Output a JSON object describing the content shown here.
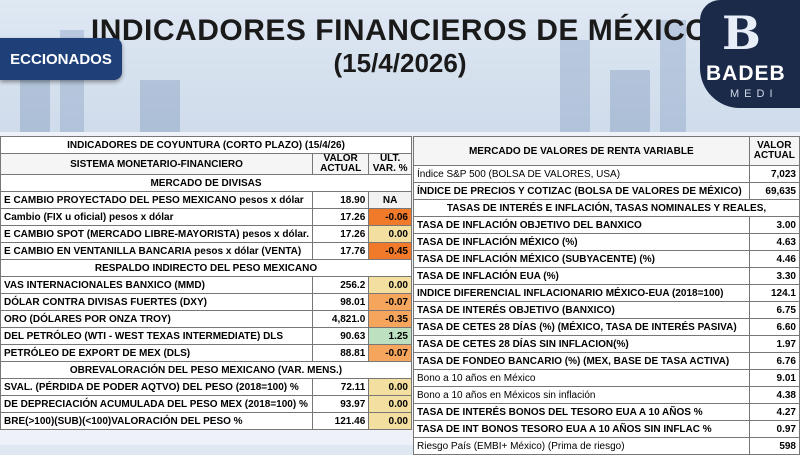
{
  "header": {
    "title": "INDICADORES FINANCIEROS DE MÉXICO",
    "date": "(15/4/2026)",
    "badge": "ECCIONADOS"
  },
  "logo": {
    "mark": "B",
    "name": "BADEB",
    "sub": "MEDI"
  },
  "left": {
    "title": "INDICADORES DE COYUNTURA (CORTO PLAZO) (15/4/26)",
    "col1": "SISTEMA MONETARIO-FINANCIERO",
    "col2": "VALOR ACTUAL",
    "col3": "ÚLT. VAR. %",
    "s1": "MERCADO DE DIVISAS",
    "rows1": [
      {
        "label": "E CAMBIO PROYECTADO DEL PESO MEXICANO pesos x dólar",
        "value": "18.90",
        "var": "NA"
      },
      {
        "label": "Cambio (FIX u oficial) pesos x dólar",
        "value": "17.26",
        "var": "-0.06"
      },
      {
        "label": "E CAMBIO SPOT (MERCADO LIBRE-MAYORISTA) pesos x dólar.",
        "value": "17.26",
        "var": "0.00"
      },
      {
        "label": "E CAMBIO EN VENTANILLA BANCARIA pesos x dólar (VENTA)",
        "value": "17.76",
        "var": "-0.45"
      }
    ],
    "s2": "RESPALDO INDIRECTO DEL PESO MEXICANO",
    "rows2": [
      {
        "label": "VAS INTERNACIONALES BANXICO (MMD)",
        "value": "256.2",
        "var": "0.00"
      },
      {
        "label": "DÓLAR CONTRA DIVISAS FUERTES (DXY)",
        "value": "98.01",
        "var": "-0.07"
      },
      {
        "label": "ORO (DÓLARES POR ONZA TROY)",
        "value": "4,821.0",
        "var": "-0.35"
      },
      {
        "label": "DEL PETRÓLEO (WTI - WEST TEXAS INTERMEDIATE) DLS",
        "value": "90.63",
        "var": "1.25"
      },
      {
        "label": "PETRÓLEO DE EXPORT DE MEX (DLS)",
        "value": "88.81",
        "var": "-0.07"
      }
    ],
    "s3": "OBREVALORACIÓN DEL PESO MEXICANO (VAR. MENS.)",
    "rows3": [
      {
        "label": "SVAL. (PÉRDIDA DE PODER AQTVO) DEL PESO (2018=100) %",
        "value": "72.11",
        "var": "0.00"
      },
      {
        "label": "DE DEPRECIACIÓN ACUMULADA DEL PESO MEX (2018=100) %",
        "value": "93.97",
        "var": "0.00"
      },
      {
        "label": "BRE(>100)(SUB)(<100)VALORACIÓN DEL PESO  %",
        "value": "121.46",
        "var": "0.00"
      }
    ]
  },
  "right": {
    "col1": "MERCADO DE VALORES DE RENTA VARIABLE",
    "col2": "VALOR ACTUAL",
    "rows1": [
      {
        "label": "Índice S&P 500 (BOLSA DE VALORES, USA)",
        "value": "7,023"
      },
      {
        "label": "ÍNDICE DE PRECIOS Y COTIZAC (BOLSA DE VALORES DE MÉXICO)",
        "value": "69,635"
      }
    ],
    "s1": "TASAS DE INTERÉS E INFLACIÓN, TASAS NOMINALES Y REALES,",
    "rows2": [
      {
        "label": "TASA DE INFLACIÓN OBJETIVO DEL BANXICO",
        "value": "3.00"
      },
      {
        "label": "TASA DE INFLACIÓN MÉXICO (%)",
        "value": "4.63"
      },
      {
        "label": "TASA DE INFLACIÓN MÉXICO (SUBYACENTE) (%)",
        "value": "4.46"
      },
      {
        "label": "TASA DE INFLACIÓN EUA (%)",
        "value": "3.30"
      },
      {
        "label": "INDICE DIFERENCIAL INFLACIONARIO MÉXICO-EUA (2018=100)",
        "value": "124.1"
      },
      {
        "label": "TASA DE INTERÉS OBJETIVO (BANXICO)",
        "value": "6.75"
      },
      {
        "label": "TASA DE CETES 28 DÍAS (%) (MÉXICO, TASA DE INTERÉS PASIVA)",
        "value": "6.60"
      },
      {
        "label": "TASA DE CETES 28 DÍAS SIN INFLACION(%)",
        "value": "1.97"
      },
      {
        "label": "TASA DE FONDEO BANCARIO (%) (MEX, BASE DE TASA ACTIVA)",
        "value": "6.76"
      },
      {
        "label": "Bono a 10 años en México",
        "value": "9.01"
      },
      {
        "label": "Bono a 10 años en Méxicos sin inflación",
        "value": "4.38"
      },
      {
        "label": "TASA DE INTERÉS BONOS DEL TESORO EUA A 10 AÑOS %",
        "value": "4.27"
      },
      {
        "label": "TASA DE INT BONOS TESORO EUA A 10 AÑOS SIN INFLAC %",
        "value": "0.97"
      },
      {
        "label": "Riesgo País (EMBI+ México) (Prima de riesgo)",
        "value": "598"
      }
    ]
  }
}
